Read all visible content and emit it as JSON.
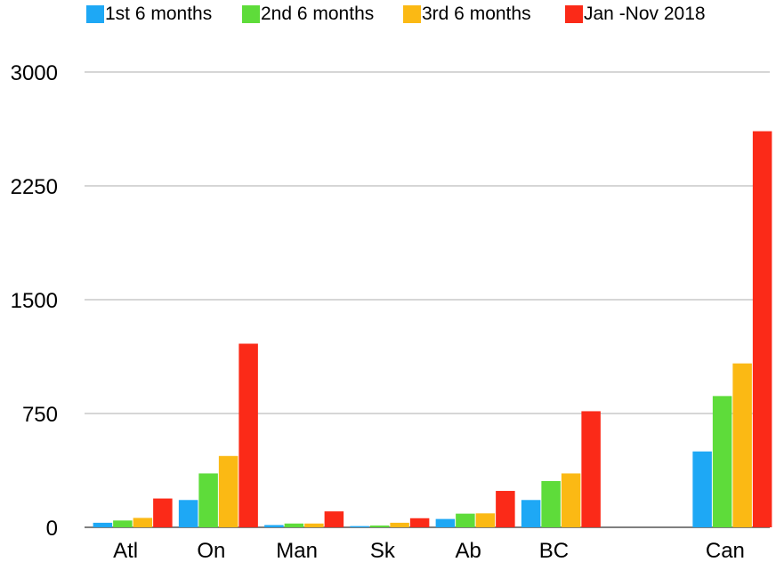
{
  "chart_data": {
    "type": "bar",
    "title": "",
    "xlabel": "",
    "ylabel": "",
    "categories": [
      "Atl",
      "On",
      "Man",
      "Sk",
      "Ab",
      "BC",
      "",
      "Can"
    ],
    "series": [
      {
        "name": "1st 6 months",
        "color": "#1ea8f5",
        "values": [
          30,
          180,
          15,
          8,
          55,
          180,
          null,
          500
        ]
      },
      {
        "name": "2nd 6 months",
        "color": "#5edc3a",
        "values": [
          45,
          355,
          25,
          12,
          90,
          305,
          null,
          865
        ]
      },
      {
        "name": "3rd 6 months",
        "color": "#fbb914",
        "values": [
          62,
          470,
          25,
          30,
          92,
          355,
          null,
          1080
        ]
      },
      {
        "name": "Jan -Nov 2018",
        "color": "#fb2a18",
        "values": [
          190,
          1210,
          105,
          60,
          240,
          765,
          null,
          2610
        ]
      }
    ],
    "yticks": [
      "0",
      "750",
      "1500",
      "2250",
      "3000"
    ],
    "ylim": [
      0,
      3000
    ],
    "grid": true,
    "legend_position": "top"
  }
}
